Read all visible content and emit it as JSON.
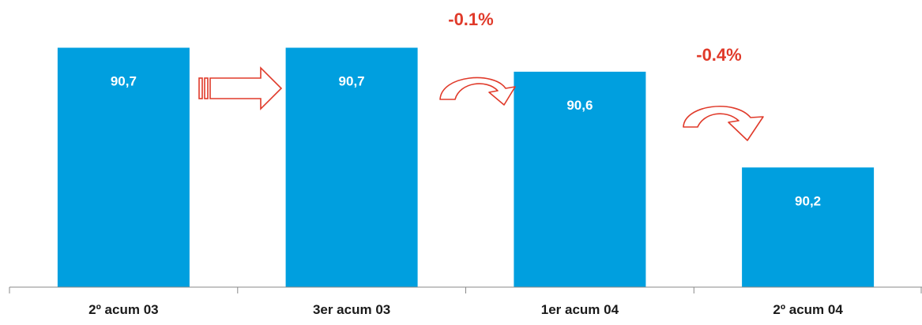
{
  "chart_data": {
    "type": "bar",
    "categories": [
      "2º acum 03",
      "3er acum 03",
      "1er acum 04",
      "2º acum 04"
    ],
    "values": [
      90.7,
      90.7,
      90.6,
      90.2
    ],
    "value_labels": [
      "90,7",
      "90,7",
      "90,6",
      "90,2"
    ],
    "title": "",
    "xlabel": "",
    "ylabel": "",
    "ylim": [
      89.7,
      90.85
    ],
    "grid": false,
    "annotations": [
      {
        "text": "-0.1%",
        "between": [
          1,
          2
        ],
        "arrow": "curved"
      },
      {
        "text": "-0.4%",
        "between": [
          2,
          3
        ],
        "arrow": "curved"
      }
    ],
    "flat_arrow_between": [
      0,
      1
    ],
    "colors": {
      "bar": "#009fdf",
      "annotation": "#e03a2a",
      "axis": "#888888",
      "tick_text": "#1a1a1a",
      "bar_text": "#ffffff"
    }
  }
}
